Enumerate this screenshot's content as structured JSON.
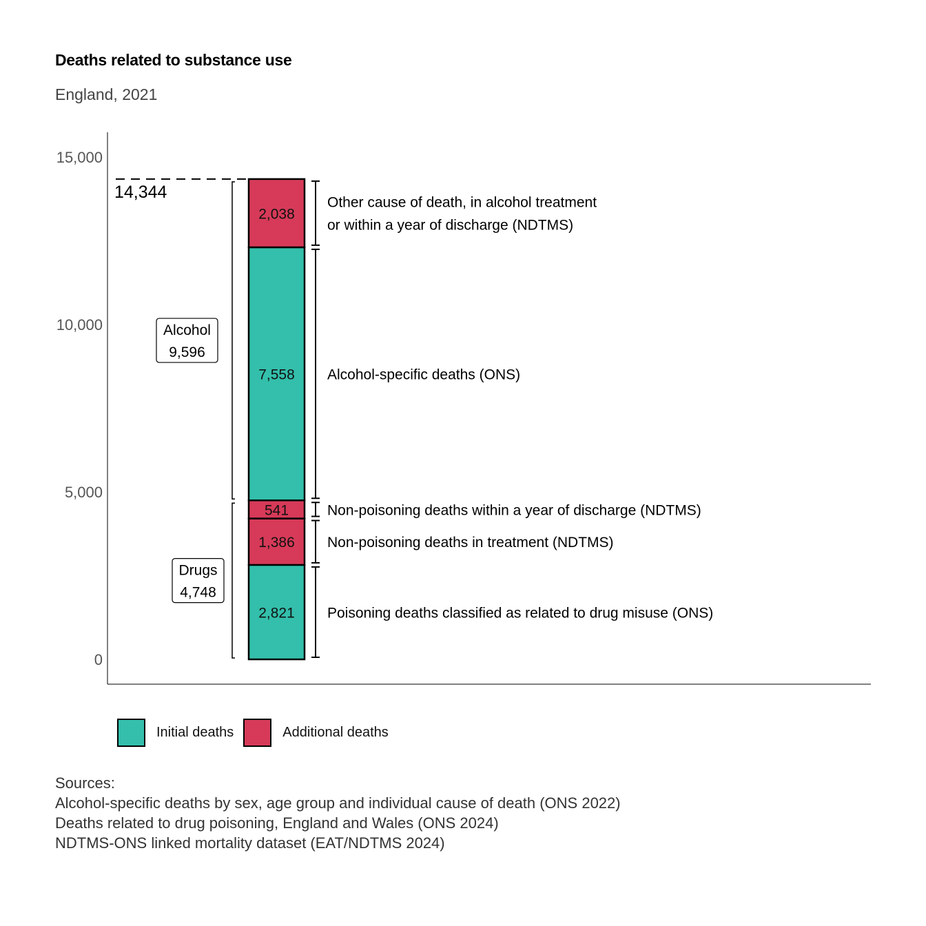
{
  "title": "Deaths related to substance use",
  "subtitle": "England, 2021",
  "chart_data": {
    "type": "bar",
    "stacked": true,
    "ylim": [
      0,
      16500
    ],
    "yticks": [
      0,
      5000,
      10000,
      15000
    ],
    "ytick_labels": [
      "0",
      "5,000",
      "10,000",
      "15,000"
    ],
    "total": 14344,
    "total_label": "14,344",
    "segments": [
      {
        "value": 2821,
        "label": "2,821",
        "type": "initial",
        "description": "Poisoning deaths classified as related to drug misuse (ONS)"
      },
      {
        "value": 1386,
        "label": "1,386",
        "type": "additional",
        "description": "Non-poisoning deaths in treatment (NDTMS)"
      },
      {
        "value": 541,
        "label": "541",
        "type": "additional",
        "description": "Non-poisoning deaths within a year of discharge (NDTMS)"
      },
      {
        "value": 7558,
        "label": "7,558",
        "type": "initial",
        "description": "Alcohol-specific deaths (ONS)"
      },
      {
        "value": 2038,
        "label": "2,038",
        "type": "additional",
        "description": "Other cause of death, in alcohol treatment",
        "description2": "or within a year of discharge (NDTMS)"
      }
    ],
    "groups": [
      {
        "name": "Drugs",
        "value_label": "4,748",
        "from": 0,
        "to": 4748
      },
      {
        "name": "Alcohol",
        "value_label": "9,596",
        "from": 4748,
        "to": 14344
      }
    ],
    "colors": {
      "initial": "#33bfab",
      "additional": "#d63a58"
    },
    "legend_position": "bottom-left"
  },
  "legend": {
    "initial": "Initial deaths",
    "additional": "Additional deaths"
  },
  "sources": {
    "heading": "Sources:",
    "lines": [
      "Alcohol-specific deaths by sex, age group and individual cause of death (ONS 2022)",
      "Deaths related to drug poisoning, England and Wales (ONS 2024)",
      "NDTMS-ONS linked mortality dataset (EAT/NDTMS 2024)"
    ]
  }
}
